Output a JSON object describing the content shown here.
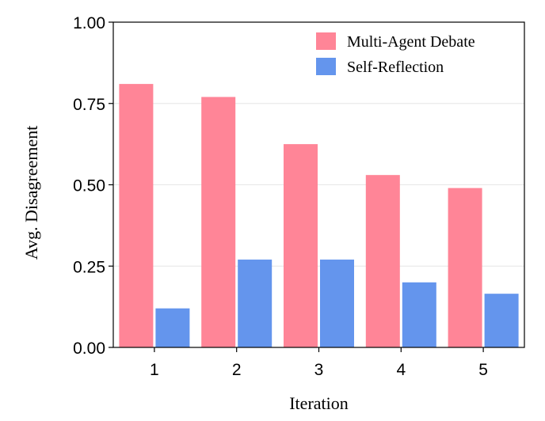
{
  "chart_data": {
    "type": "bar",
    "categories": [
      "1",
      "2",
      "3",
      "4",
      "5"
    ],
    "series": [
      {
        "name": "Multi-Agent Debate",
        "color": "#FF8597",
        "values": [
          0.81,
          0.77,
          0.625,
          0.53,
          0.49
        ]
      },
      {
        "name": "Self-Reflection",
        "color": "#6495ED",
        "values": [
          0.12,
          0.27,
          0.27,
          0.2,
          0.165
        ]
      }
    ],
    "xlabel": "Iteration",
    "ylabel": "Avg. Disagreement",
    "ylim": [
      0,
      1
    ],
    "yticks": [
      "0.00",
      "0.25",
      "0.50",
      "0.75",
      "1.00"
    ],
    "grid": true,
    "legend_position": "top-right"
  }
}
